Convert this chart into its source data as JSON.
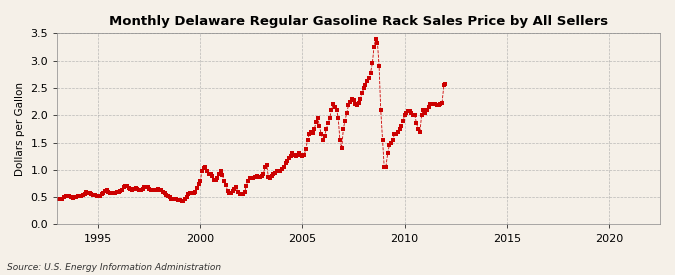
{
  "title": "Monthly Delaware Regular Gasoline Rack Sales Price by All Sellers",
  "ylabel": "Dollars per Gallon",
  "source": "Source: U.S. Energy Information Administration",
  "background_color": "#f5f0e8",
  "line_color": "#cc0000",
  "marker": "s",
  "marker_size": 3,
  "xlim": [
    1993.0,
    2022.5
  ],
  "ylim": [
    0.0,
    3.5
  ],
  "yticks": [
    0.0,
    0.5,
    1.0,
    1.5,
    2.0,
    2.5,
    3.0,
    3.5
  ],
  "xticks": [
    1995,
    2000,
    2005,
    2010,
    2015,
    2020
  ],
  "data": {
    "years": [
      1993.08,
      1993.17,
      1993.25,
      1993.33,
      1993.42,
      1993.5,
      1993.58,
      1993.67,
      1993.75,
      1993.83,
      1993.92,
      1994.0,
      1994.08,
      1994.17,
      1994.25,
      1994.33,
      1994.42,
      1994.5,
      1994.58,
      1994.67,
      1994.75,
      1994.83,
      1994.92,
      1995.0,
      1995.08,
      1995.17,
      1995.25,
      1995.33,
      1995.42,
      1995.5,
      1995.58,
      1995.67,
      1995.75,
      1995.83,
      1995.92,
      1996.0,
      1996.08,
      1996.17,
      1996.25,
      1996.33,
      1996.42,
      1996.5,
      1996.58,
      1996.67,
      1996.75,
      1996.83,
      1996.92,
      1997.0,
      1997.08,
      1997.17,
      1997.25,
      1997.33,
      1997.42,
      1997.5,
      1997.58,
      1997.67,
      1997.75,
      1997.83,
      1997.92,
      1998.0,
      1998.08,
      1998.17,
      1998.25,
      1998.33,
      1998.42,
      1998.5,
      1998.58,
      1998.67,
      1998.75,
      1998.83,
      1998.92,
      1999.0,
      1999.08,
      1999.17,
      1999.25,
      1999.33,
      1999.42,
      1999.5,
      1999.58,
      1999.67,
      1999.75,
      1999.83,
      1999.92,
      2000.0,
      2000.08,
      2000.17,
      2000.25,
      2000.33,
      2000.42,
      2000.5,
      2000.58,
      2000.67,
      2000.75,
      2000.83,
      2000.92,
      2001.0,
      2001.08,
      2001.17,
      2001.25,
      2001.33,
      2001.42,
      2001.5,
      2001.58,
      2001.67,
      2001.75,
      2001.83,
      2001.92,
      2002.0,
      2002.08,
      2002.17,
      2002.25,
      2002.33,
      2002.42,
      2002.5,
      2002.58,
      2002.67,
      2002.75,
      2002.83,
      2002.92,
      2003.0,
      2003.08,
      2003.17,
      2003.25,
      2003.33,
      2003.42,
      2003.5,
      2003.58,
      2003.67,
      2003.75,
      2003.83,
      2003.92,
      2004.0,
      2004.08,
      2004.17,
      2004.25,
      2004.33,
      2004.42,
      2004.5,
      2004.58,
      2004.67,
      2004.75,
      2004.83,
      2004.92,
      2005.0,
      2005.08,
      2005.17,
      2005.25,
      2005.33,
      2005.42,
      2005.5,
      2005.58,
      2005.67,
      2005.75,
      2005.83,
      2005.92,
      2006.0,
      2006.08,
      2006.17,
      2006.25,
      2006.33,
      2006.42,
      2006.5,
      2006.58,
      2006.67,
      2006.75,
      2006.83,
      2006.92,
      2007.0,
      2007.08,
      2007.17,
      2007.25,
      2007.33,
      2007.42,
      2007.5,
      2007.58,
      2007.67,
      2007.75,
      2007.83,
      2007.92,
      2008.0,
      2008.08,
      2008.17,
      2008.25,
      2008.33,
      2008.42,
      2008.5,
      2008.58,
      2008.67,
      2008.75,
      2008.83,
      2008.92,
      2009.0,
      2009.08,
      2009.17,
      2009.25,
      2009.33,
      2009.42,
      2009.5,
      2009.58,
      2009.67,
      2009.75,
      2009.83,
      2009.92,
      2010.0,
      2010.08,
      2010.17,
      2010.25,
      2010.33,
      2010.42,
      2010.5,
      2010.58,
      2010.67,
      2010.75,
      2010.83,
      2010.92,
      2011.0,
      2011.08,
      2011.17,
      2011.25,
      2011.33,
      2011.42,
      2011.5,
      2011.58,
      2011.67,
      2011.75,
      2011.83,
      2011.92,
      2012.0
    ],
    "values": [
      0.46,
      0.47,
      0.47,
      0.5,
      0.52,
      0.52,
      0.52,
      0.5,
      0.49,
      0.5,
      0.51,
      0.52,
      0.52,
      0.53,
      0.54,
      0.56,
      0.59,
      0.58,
      0.57,
      0.55,
      0.54,
      0.54,
      0.53,
      0.53,
      0.53,
      0.55,
      0.58,
      0.62,
      0.63,
      0.6,
      0.57,
      0.57,
      0.57,
      0.57,
      0.59,
      0.6,
      0.62,
      0.64,
      0.68,
      0.7,
      0.7,
      0.67,
      0.65,
      0.64,
      0.65,
      0.66,
      0.65,
      0.64,
      0.64,
      0.65,
      0.68,
      0.69,
      0.68,
      0.65,
      0.64,
      0.63,
      0.63,
      0.64,
      0.65,
      0.64,
      0.63,
      0.6,
      0.57,
      0.54,
      0.52,
      0.5,
      0.47,
      0.46,
      0.46,
      0.46,
      0.45,
      0.44,
      0.43,
      0.43,
      0.46,
      0.51,
      0.55,
      0.57,
      0.57,
      0.58,
      0.6,
      0.67,
      0.74,
      0.8,
      0.98,
      1.03,
      1.06,
      0.97,
      0.93,
      0.93,
      0.88,
      0.82,
      0.82,
      0.85,
      0.93,
      0.97,
      0.9,
      0.8,
      0.72,
      0.62,
      0.58,
      0.57,
      0.61,
      0.65,
      0.68,
      0.6,
      0.56,
      0.55,
      0.55,
      0.6,
      0.7,
      0.8,
      0.85,
      0.86,
      0.86,
      0.87,
      0.88,
      0.87,
      0.87,
      0.88,
      0.93,
      1.05,
      1.08,
      0.87,
      0.85,
      0.88,
      0.93,
      0.95,
      0.97,
      0.97,
      0.98,
      1.01,
      1.06,
      1.12,
      1.16,
      1.21,
      1.26,
      1.3,
      1.28,
      1.26,
      1.28,
      1.3,
      1.28,
      1.25,
      1.27,
      1.39,
      1.55,
      1.65,
      1.7,
      1.68,
      1.75,
      1.88,
      1.95,
      1.8,
      1.65,
      1.55,
      1.62,
      1.75,
      1.85,
      1.95,
      2.1,
      2.2,
      2.15,
      2.1,
      1.95,
      1.55,
      1.4,
      1.75,
      1.9,
      2.05,
      2.18,
      2.25,
      2.3,
      2.28,
      2.2,
      2.18,
      2.22,
      2.3,
      2.4,
      2.5,
      2.55,
      2.62,
      2.68,
      2.78,
      2.95,
      3.25,
      3.4,
      3.32,
      2.9,
      2.1,
      1.55,
      1.05,
      1.05,
      1.3,
      1.45,
      1.5,
      1.55,
      1.65,
      1.65,
      1.7,
      1.75,
      1.8,
      1.9,
      2.0,
      2.05,
      2.08,
      2.08,
      2.05,
      2.0,
      2.0,
      1.85,
      1.75,
      1.7,
      2.0,
      2.1,
      2.05,
      2.1,
      2.15,
      2.2,
      2.2,
      2.2,
      2.2,
      2.18,
      2.18,
      2.2,
      2.22,
      2.55,
      2.58
    ]
  }
}
